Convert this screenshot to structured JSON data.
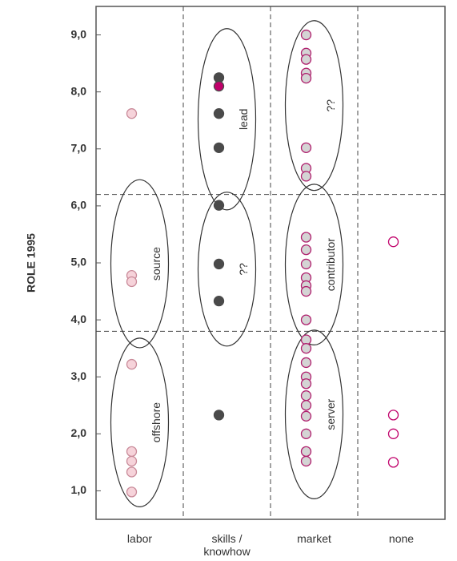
{
  "chart_data": {
    "type": "scatter",
    "y_label": "ROLE 1995",
    "categories": [
      "labor",
      "skills / knowhow",
      "market",
      "none"
    ],
    "ylim": [
      0.5,
      9.5
    ],
    "yticks": [
      {
        "value": 1,
        "label": "1,0"
      },
      {
        "value": 2,
        "label": "2,0"
      },
      {
        "value": 3,
        "label": "3,0"
      },
      {
        "value": 4,
        "label": "4,0"
      },
      {
        "value": 5,
        "label": "5,0"
      },
      {
        "value": 6,
        "label": "6,0"
      },
      {
        "value": 7,
        "label": "7,0"
      },
      {
        "value": 8,
        "label": "8,0"
      },
      {
        "value": 9,
        "label": "9,0"
      }
    ],
    "hlines": [
      6.2,
      3.8
    ],
    "series": [
      {
        "color": "#f6d3da",
        "stroke": "#c98a99",
        "values": [
          7.62,
          4.78,
          4.67,
          3.22,
          1.69,
          1.52,
          1.33,
          0.98
        ]
      },
      {
        "color": "#4a4a4a",
        "stroke": "#4a4a4a",
        "values": [
          8.25,
          8.1,
          7.62,
          7.02,
          6.01,
          4.98,
          4.33,
          2.33
        ],
        "colors": [
          "#4a4a4a",
          "#c0006a",
          "#4a4a4a",
          "#4a4a4a",
          "#4a4a4a",
          "#4a4a4a",
          "#4a4a4a",
          "#4a4a4a"
        ]
      },
      {
        "color": "#d4d4d4",
        "stroke": "#b0206e",
        "values": [
          9.0,
          8.68,
          8.57,
          8.33,
          8.24,
          7.02,
          6.66,
          6.52,
          5.45,
          5.23,
          4.98,
          4.74,
          4.6,
          4.5,
          4.0,
          3.65,
          3.5,
          3.25,
          3.0,
          2.88,
          2.67,
          2.5,
          2.31,
          2.0,
          1.69,
          1.52
        ]
      },
      {
        "color": "#ffffff",
        "stroke": "#c0006a",
        "values": [
          5.37,
          2.33,
          2.0,
          1.5
        ]
      }
    ],
    "annotations": [
      {
        "text": "source",
        "category": 0,
        "range": [
          3.51,
          6.46
        ]
      },
      {
        "text": "offshore",
        "category": 0,
        "range": [
          0.72,
          3.68
        ]
      },
      {
        "text": "lead",
        "category": 1,
        "range": [
          5.93,
          9.11
        ]
      },
      {
        "text": "??",
        "category": 1,
        "range": [
          3.54,
          6.24
        ]
      },
      {
        "text": "??",
        "category": 2,
        "range": [
          6.27,
          9.25
        ]
      },
      {
        "text": "contributor",
        "category": 2,
        "range": [
          3.56,
          6.38
        ]
      },
      {
        "text": "server",
        "category": 2,
        "range": [
          0.86,
          3.82
        ]
      }
    ]
  }
}
